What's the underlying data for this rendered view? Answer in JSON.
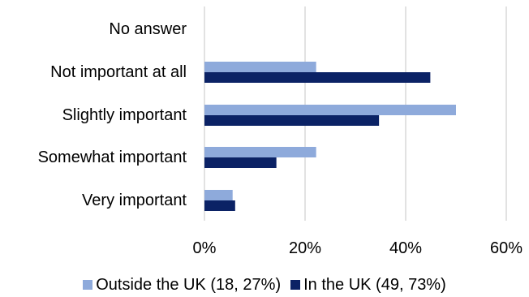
{
  "chart_data": {
    "type": "bar",
    "orientation": "horizontal",
    "categories": [
      "No answer",
      "Not important at all",
      "Slightly important",
      "Somewhat important",
      "Very important"
    ],
    "series": [
      {
        "name": "Outside the UK (18, 27%)",
        "color": "#8eaadb",
        "values": [
          0,
          22.2,
          50.0,
          22.2,
          5.6
        ]
      },
      {
        "name": "In the UK (49, 73%)",
        "color": "#0b2265",
        "values": [
          0,
          44.9,
          34.7,
          14.3,
          6.1
        ]
      }
    ],
    "xlim": [
      0,
      60
    ],
    "xticks": [
      "0%",
      "20%",
      "40%",
      "60%"
    ],
    "grid": true,
    "legend_position": "bottom"
  }
}
